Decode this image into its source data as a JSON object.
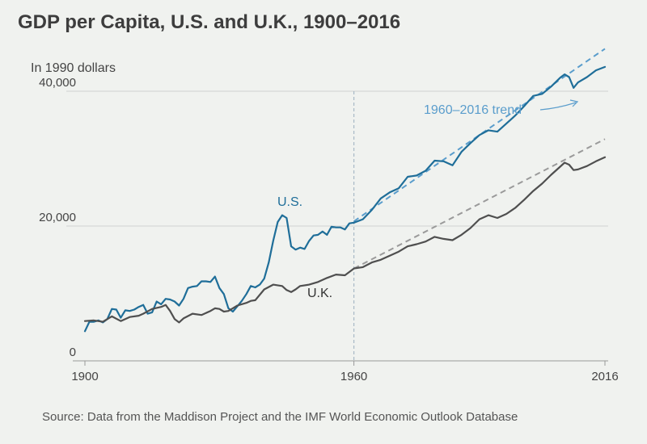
{
  "title": "GDP per Capita, U.S. and U.K., 1900–2016",
  "unit_label": "In 1990 dollars",
  "source": "Source: Data from the Maddison Project and the IMF World Economic Outlook Database",
  "colors": {
    "us": "#1f6e99",
    "uk": "#4f4f4f",
    "us_trend": "#5a9dcc",
    "uk_trend": "#9a9a9a",
    "grid": "#cfd3d0",
    "axis": "#999999",
    "vline": "#a9b9c6"
  },
  "chart_data": {
    "type": "line",
    "title": "GDP per Capita, U.S. and U.K., 1900–2016",
    "ylabel": "In 1990 dollars",
    "xlim": [
      1900,
      2016
    ],
    "ylim": [
      0,
      40000
    ],
    "x_ticks": [
      {
        "value": 1900,
        "label": "1900"
      },
      {
        "value": 1960,
        "label": "1960"
      },
      {
        "value": 2016,
        "label": "2016"
      }
    ],
    "y_ticks": [
      {
        "value": 0,
        "label": "0"
      },
      {
        "value": 20000,
        "label": "20,000"
      },
      {
        "value": 40000,
        "label": "40,000"
      }
    ],
    "reference_line": {
      "x": 1960
    },
    "series": [
      {
        "name": "U.S.",
        "label": "U.S.",
        "x": [
          1900,
          1901,
          1902,
          1903,
          1904,
          1905,
          1906,
          1907,
          1908,
          1909,
          1910,
          1911,
          1912,
          1913,
          1914,
          1915,
          1916,
          1917,
          1918,
          1919,
          1920,
          1921,
          1922,
          1923,
          1924,
          1925,
          1926,
          1927,
          1928,
          1929,
          1930,
          1931,
          1932,
          1933,
          1934,
          1935,
          1936,
          1937,
          1938,
          1939,
          1940,
          1941,
          1942,
          1943,
          1944,
          1945,
          1946,
          1947,
          1948,
          1949,
          1950,
          1951,
          1952,
          1953,
          1954,
          1955,
          1956,
          1957,
          1958,
          1959,
          1960,
          1962,
          1964,
          1966,
          1968,
          1970,
          1972,
          1974,
          1976,
          1978,
          1980,
          1982,
          1984,
          1986,
          1988,
          1990,
          1992,
          1994,
          1996,
          1998,
          2000,
          2002,
          2004,
          2006,
          2007,
          2008,
          2009,
          2010,
          2012,
          2014,
          2016
        ],
        "values": [
          4400,
          5800,
          5800,
          6000,
          5700,
          6200,
          7700,
          7600,
          6400,
          7500,
          7400,
          7600,
          8000,
          8300,
          7000,
          7200,
          8800,
          8400,
          9200,
          9100,
          8800,
          8200,
          9200,
          10800,
          11000,
          11100,
          11800,
          11800,
          11700,
          12500,
          10800,
          9900,
          7800,
          7300,
          8100,
          8900,
          9900,
          11100,
          10900,
          11300,
          12200,
          14600,
          17800,
          20600,
          21600,
          21200,
          17000,
          16500,
          16800,
          16600,
          17800,
          18600,
          18700,
          19200,
          18700,
          19900,
          19800,
          19800,
          19500,
          20400,
          20500,
          21000,
          22400,
          24100,
          25000,
          25600,
          27300,
          27500,
          28200,
          29700,
          29600,
          29000,
          31000,
          32300,
          33500,
          34200,
          34000,
          35200,
          36400,
          37800,
          39300,
          39600,
          40700,
          42000,
          42500,
          42100,
          40500,
          41300,
          42100,
          43100,
          43600
        ]
      },
      {
        "name": "U.K.",
        "label": "U.K.",
        "x": [
          1900,
          1902,
          1904,
          1906,
          1908,
          1910,
          1912,
          1913,
          1915,
          1917,
          1918,
          1919,
          1920,
          1921,
          1922,
          1924,
          1926,
          1928,
          1929,
          1930,
          1931,
          1932,
          1934,
          1936,
          1937,
          1938,
          1940,
          1942,
          1944,
          1945,
          1946,
          1947,
          1948,
          1950,
          1952,
          1954,
          1956,
          1958,
          1960,
          1962,
          1964,
          1966,
          1968,
          1970,
          1972,
          1974,
          1976,
          1978,
          1980,
          1982,
          1984,
          1986,
          1988,
          1990,
          1992,
          1994,
          1996,
          1998,
          2000,
          2002,
          2004,
          2006,
          2007,
          2008,
          2009,
          2010,
          2012,
          2014,
          2016
        ],
        "values": [
          5900,
          6000,
          5800,
          6600,
          5900,
          6500,
          6700,
          7000,
          7700,
          8000,
          8300,
          7400,
          6200,
          5700,
          6300,
          7000,
          6800,
          7400,
          7800,
          7700,
          7300,
          7400,
          8200,
          8600,
          8900,
          9000,
          10600,
          11300,
          11100,
          10500,
          10200,
          10600,
          11100,
          11300,
          11700,
          12300,
          12800,
          12700,
          13700,
          13900,
          14600,
          15000,
          15600,
          16200,
          17000,
          17300,
          17700,
          18400,
          18100,
          17900,
          18700,
          19700,
          21000,
          21600,
          21200,
          21800,
          22700,
          23900,
          25200,
          26300,
          27600,
          28800,
          29400,
          29100,
          28300,
          28400,
          28900,
          29600,
          30200
        ]
      }
    ],
    "trends": [
      {
        "name": "1960–2016 trend",
        "label": "1960–2016 trend",
        "series": "U.S.",
        "x": [
          1960,
          2016
        ],
        "values": [
          20700,
          46300
        ]
      },
      {
        "name": "U.K. 1960–2016 trend",
        "series": "U.K.",
        "x": [
          1960,
          2016
        ],
        "values": [
          13700,
          32900
        ]
      }
    ]
  }
}
